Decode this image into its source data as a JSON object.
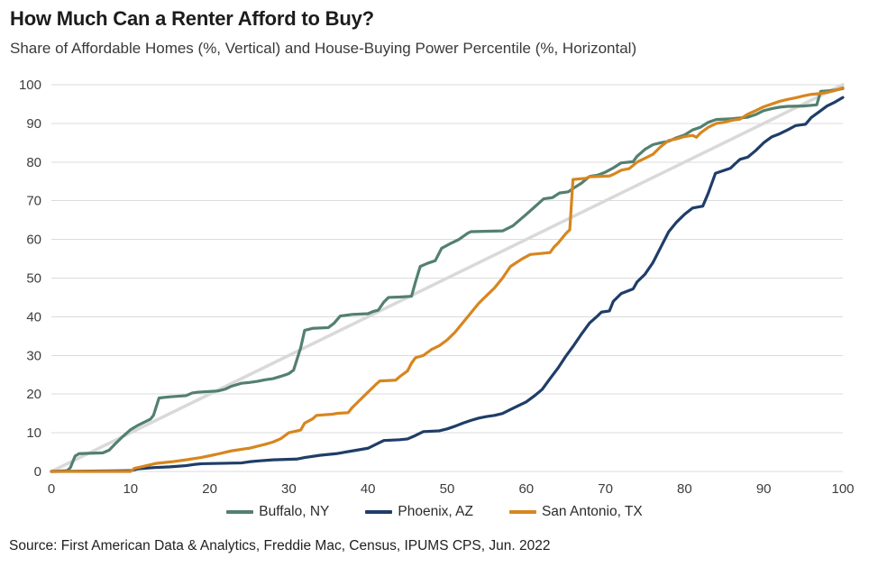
{
  "source": "Source: First American Data & Analytics, Freddie Mac, Census, IPUMS CPS, Jun. 2022",
  "colors": {
    "grid": "#DBDBDB",
    "reference_line": "#D9D9D9",
    "axis_text": "#3d3d3d"
  },
  "chart_data": {
    "type": "line",
    "title": "How Much Can a Renter Afford to Buy?",
    "subtitle": "Share of Affordable Homes (%, Vertical) and House-Buying Power Percentile (%, Horizontal)",
    "xlabel": "House-Buying Power Percentile (%)",
    "ylabel": "Share of Affordable Homes (%)",
    "xlim": [
      0,
      100
    ],
    "ylim": [
      0,
      100
    ],
    "x_ticks": [
      0,
      10,
      20,
      30,
      40,
      50,
      60,
      70,
      80,
      90,
      100
    ],
    "y_ticks": [
      0,
      10,
      20,
      30,
      40,
      50,
      60,
      70,
      80,
      90,
      100
    ],
    "grid": "horizontal",
    "legend_position": "bottom",
    "reference_line": {
      "name": "45-degree line",
      "color": "#D9D9D9",
      "points": [
        [
          0,
          0
        ],
        [
          100,
          100
        ]
      ]
    },
    "series": [
      {
        "name": "Buffalo, NY",
        "color": "#538070",
        "points": [
          [
            0,
            0
          ],
          [
            2,
            0.2
          ],
          [
            2.4,
            1
          ],
          [
            3,
            4
          ],
          [
            3.5,
            4.6
          ],
          [
            6.5,
            4.8
          ],
          [
            7.3,
            5.5
          ],
          [
            8,
            7
          ],
          [
            9,
            9
          ],
          [
            10,
            10.8
          ],
          [
            11,
            12
          ],
          [
            12.5,
            13.5
          ],
          [
            12.9,
            14.5
          ],
          [
            13.6,
            19
          ],
          [
            15,
            19.3
          ],
          [
            17,
            19.6
          ],
          [
            17.8,
            20.3
          ],
          [
            18.5,
            20.5
          ],
          [
            21,
            20.8
          ],
          [
            22,
            21.3
          ],
          [
            22.7,
            22
          ],
          [
            24,
            22.8
          ],
          [
            25,
            23
          ],
          [
            26,
            23.3
          ],
          [
            27,
            23.7
          ],
          [
            28,
            24
          ],
          [
            29,
            24.6
          ],
          [
            30,
            25.3
          ],
          [
            30.6,
            26.2
          ],
          [
            31.5,
            32
          ],
          [
            32,
            36.5
          ],
          [
            33,
            37
          ],
          [
            35,
            37.2
          ],
          [
            35.7,
            38.3
          ],
          [
            36.5,
            40.2
          ],
          [
            38,
            40.6
          ],
          [
            40,
            40.8
          ],
          [
            40.7,
            41.4
          ],
          [
            41.3,
            41.7
          ],
          [
            42,
            43.8
          ],
          [
            42.6,
            45
          ],
          [
            44,
            45.1
          ],
          [
            45.5,
            45.3
          ],
          [
            46,
            49
          ],
          [
            46.6,
            53
          ],
          [
            47.5,
            53.8
          ],
          [
            48.5,
            54.5
          ],
          [
            49.3,
            57.7
          ],
          [
            50.3,
            58.8
          ],
          [
            51.5,
            60
          ],
          [
            52.6,
            61.6
          ],
          [
            53,
            62
          ],
          [
            57,
            62.2
          ],
          [
            58.3,
            63.5
          ],
          [
            59.9,
            66.3
          ],
          [
            61,
            68.3
          ],
          [
            62.2,
            70.5
          ],
          [
            63.3,
            70.8
          ],
          [
            64.2,
            72
          ],
          [
            65.3,
            72.3
          ],
          [
            66,
            73.3
          ],
          [
            67,
            74.6
          ],
          [
            68,
            76.3
          ],
          [
            69,
            76.6
          ],
          [
            70,
            77.4
          ],
          [
            71,
            78.5
          ],
          [
            72,
            79.8
          ],
          [
            73.5,
            80.1
          ],
          [
            74,
            81.5
          ],
          [
            75,
            83.3
          ],
          [
            76,
            84.5
          ],
          [
            77,
            85
          ],
          [
            78,
            85.4
          ],
          [
            79,
            86.3
          ],
          [
            80,
            87
          ],
          [
            81,
            88.3
          ],
          [
            82,
            89
          ],
          [
            83,
            90.3
          ],
          [
            84,
            91
          ],
          [
            86,
            91.2
          ],
          [
            87,
            91.4
          ],
          [
            88,
            91.6
          ],
          [
            89,
            92.3
          ],
          [
            90,
            93.3
          ],
          [
            91,
            93.8
          ],
          [
            92,
            94.2
          ],
          [
            93,
            94.4
          ],
          [
            95,
            94.5
          ],
          [
            96.7,
            94.8
          ],
          [
            97.2,
            98.3
          ],
          [
            98,
            98.4
          ],
          [
            99,
            98.6
          ],
          [
            100,
            99
          ]
        ]
      },
      {
        "name": "Phoenix, AZ",
        "color": "#1F3D68",
        "points": [
          [
            0,
            0
          ],
          [
            10,
            0.2
          ],
          [
            11,
            0.7
          ],
          [
            13,
            1
          ],
          [
            15,
            1.2
          ],
          [
            17,
            1.5
          ],
          [
            18,
            1.8
          ],
          [
            19,
            2
          ],
          [
            24,
            2.2
          ],
          [
            25,
            2.5
          ],
          [
            26,
            2.7
          ],
          [
            28,
            3
          ],
          [
            31,
            3.2
          ],
          [
            32,
            3.6
          ],
          [
            34,
            4.2
          ],
          [
            36,
            4.6
          ],
          [
            38,
            5.3
          ],
          [
            40,
            6
          ],
          [
            41,
            7
          ],
          [
            42,
            8
          ],
          [
            44,
            8.2
          ],
          [
            45,
            8.4
          ],
          [
            46,
            9.3
          ],
          [
            47,
            10.3
          ],
          [
            49,
            10.5
          ],
          [
            50,
            11
          ],
          [
            51,
            11.7
          ],
          [
            52,
            12.5
          ],
          [
            53,
            13.2
          ],
          [
            54,
            13.8
          ],
          [
            55,
            14.2
          ],
          [
            56,
            14.5
          ],
          [
            57,
            15
          ],
          [
            58,
            16
          ],
          [
            59,
            17
          ],
          [
            60,
            18
          ],
          [
            61,
            19.5
          ],
          [
            62,
            21.2
          ],
          [
            63,
            24
          ],
          [
            64,
            26.7
          ],
          [
            65,
            29.8
          ],
          [
            66,
            32.6
          ],
          [
            67,
            35.6
          ],
          [
            68,
            38.4
          ],
          [
            69,
            40.2
          ],
          [
            69.5,
            41.2
          ],
          [
            70.5,
            41.5
          ],
          [
            71,
            44
          ],
          [
            72,
            46
          ],
          [
            73.5,
            47.2
          ],
          [
            74,
            49
          ],
          [
            75,
            51
          ],
          [
            76,
            54
          ],
          [
            77,
            58
          ],
          [
            78,
            62
          ],
          [
            79,
            64.5
          ],
          [
            80,
            66.5
          ],
          [
            81,
            68.1
          ],
          [
            82.3,
            68.6
          ],
          [
            83,
            72
          ],
          [
            83.9,
            77.1
          ],
          [
            85.8,
            78.4
          ],
          [
            86.3,
            79.4
          ],
          [
            87,
            80.7
          ],
          [
            88,
            81.3
          ],
          [
            89,
            83
          ],
          [
            90,
            85
          ],
          [
            91,
            86.5
          ],
          [
            92,
            87.3
          ],
          [
            93,
            88.3
          ],
          [
            94,
            89.4
          ],
          [
            95.3,
            89.8
          ],
          [
            96,
            91.5
          ],
          [
            97,
            93
          ],
          [
            98,
            94.5
          ],
          [
            99,
            95.5
          ],
          [
            100,
            96.7
          ]
        ]
      },
      {
        "name": "San Antonio, TX",
        "color": "#D7861F",
        "points": [
          [
            0,
            0
          ],
          [
            10,
            0
          ],
          [
            10.5,
            0.8
          ],
          [
            11.4,
            1.2
          ],
          [
            13.3,
            2.1
          ],
          [
            15.2,
            2.5
          ],
          [
            17,
            3
          ],
          [
            18.9,
            3.6
          ],
          [
            20.8,
            4.4
          ],
          [
            22.7,
            5.3
          ],
          [
            24.6,
            5.9
          ],
          [
            25,
            6
          ],
          [
            26,
            6.5
          ],
          [
            27,
            7
          ],
          [
            28,
            7.6
          ],
          [
            29,
            8.5
          ],
          [
            30,
            10
          ],
          [
            31.5,
            10.7
          ],
          [
            32,
            12.5
          ],
          [
            33,
            13.6
          ],
          [
            33.5,
            14.5
          ],
          [
            35.5,
            14.8
          ],
          [
            36,
            15
          ],
          [
            37.5,
            15.2
          ],
          [
            38,
            16.5
          ],
          [
            39,
            18.5
          ],
          [
            40,
            20.5
          ],
          [
            41,
            22.5
          ],
          [
            41.5,
            23.4
          ],
          [
            43.5,
            23.6
          ],
          [
            44,
            24.5
          ],
          [
            45,
            26
          ],
          [
            45.5,
            28
          ],
          [
            46,
            29.4
          ],
          [
            47,
            30
          ],
          [
            48,
            31.5
          ],
          [
            49,
            32.5
          ],
          [
            50,
            34
          ],
          [
            51,
            36
          ],
          [
            52,
            38.5
          ],
          [
            53,
            41
          ],
          [
            54,
            43.5
          ],
          [
            55,
            45.5
          ],
          [
            56,
            47.5
          ],
          [
            57,
            50
          ],
          [
            58,
            53
          ],
          [
            59.5,
            55
          ],
          [
            60.5,
            56.1
          ],
          [
            63,
            56.6
          ],
          [
            63.5,
            58
          ],
          [
            64,
            59
          ],
          [
            65,
            61.5
          ],
          [
            65.5,
            62.5
          ],
          [
            65.9,
            75.5
          ],
          [
            67.5,
            75.8
          ],
          [
            68,
            76.2
          ],
          [
            70.5,
            76.4
          ],
          [
            71,
            76.8
          ],
          [
            72,
            77.9
          ],
          [
            73,
            78.3
          ],
          [
            74,
            80
          ],
          [
            75,
            81
          ],
          [
            76,
            82
          ],
          [
            77,
            84
          ],
          [
            78,
            85.6
          ],
          [
            79,
            86
          ],
          [
            80,
            86.6
          ],
          [
            81,
            86.9
          ],
          [
            81.5,
            86.4
          ],
          [
            82,
            87.5
          ],
          [
            83,
            89
          ],
          [
            84,
            90
          ],
          [
            85,
            90.3
          ],
          [
            86,
            90.8
          ],
          [
            87,
            91.1
          ],
          [
            88,
            92.4
          ],
          [
            89,
            93.3
          ],
          [
            90,
            94.3
          ],
          [
            91,
            95
          ],
          [
            92,
            95.7
          ],
          [
            93,
            96.2
          ],
          [
            94,
            96.6
          ],
          [
            95,
            97.1
          ],
          [
            96,
            97.5
          ],
          [
            97,
            97.7
          ],
          [
            98,
            98
          ],
          [
            99,
            98.5
          ],
          [
            100,
            99.2
          ]
        ]
      }
    ]
  }
}
